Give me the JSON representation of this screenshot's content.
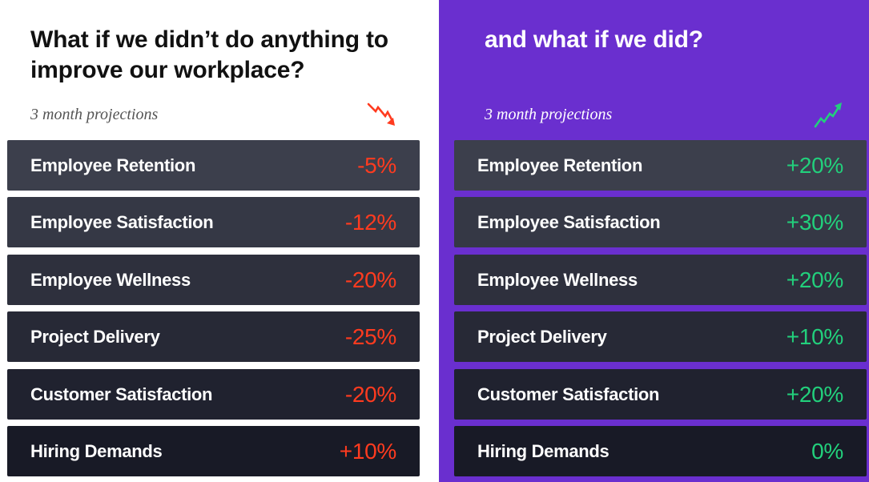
{
  "colors": {
    "left_background": "#ffffff",
    "right_background": "#6a2fcf",
    "negative": "#ff3b1f",
    "positive": "#22d07c",
    "row_dark": "#181a26",
    "row_light": "#3c3f4c"
  },
  "left": {
    "title": "What if we didn’t do anything to improve our workplace?",
    "subtitle": "3 month projections",
    "trend_icon": "trend-down-icon",
    "rows": [
      {
        "label": "Employee Retention",
        "value": "-5%"
      },
      {
        "label": "Employee Satisfaction",
        "value": "-12%"
      },
      {
        "label": "Employee Wellness",
        "value": "-20%"
      },
      {
        "label": "Project Delivery",
        "value": "-25%"
      },
      {
        "label": "Customer Satisfaction",
        "value": "-20%"
      },
      {
        "label": "Hiring Demands",
        "value": "+10%"
      }
    ]
  },
  "right": {
    "title": "and what if we did?",
    "subtitle": "3 month projections",
    "trend_icon": "trend-up-icon",
    "rows": [
      {
        "label": "Employee Retention",
        "value": "+20%"
      },
      {
        "label": "Employee Satisfaction",
        "value": "+30%"
      },
      {
        "label": "Employee Wellness",
        "value": "+20%"
      },
      {
        "label": "Project Delivery",
        "value": "+10%"
      },
      {
        "label": "Customer Satisfaction",
        "value": "+20%"
      },
      {
        "label": "Hiring Demands",
        "value": "0%"
      }
    ]
  }
}
